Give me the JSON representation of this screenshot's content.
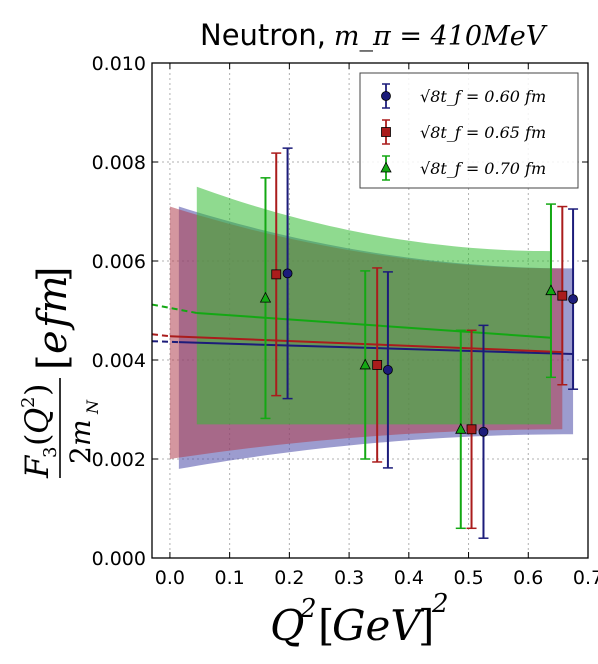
{
  "chart_data": {
    "type": "scatter",
    "title": {
      "text": "Neutron,",
      "math": "m_π = 410MeV"
    },
    "xlabel": "Q²[GeV]²",
    "ylabel": "F₃(Q²)/2m_N [e fm]",
    "xlim": [
      -0.03,
      0.7
    ],
    "ylim": [
      0.0,
      0.01
    ],
    "x_ticks": [
      0.0,
      0.1,
      0.2,
      0.3,
      0.4,
      0.5,
      0.6,
      0.7
    ],
    "x_tick_labels": [
      "0.0",
      "0.1",
      "0.2",
      "0.3",
      "0.4",
      "0.5",
      "0.6",
      "0.7"
    ],
    "y_ticks": [
      0.0,
      0.002,
      0.004,
      0.006,
      0.008,
      0.01
    ],
    "y_tick_labels": [
      "0.000",
      "0.002",
      "0.004",
      "0.006",
      "0.008",
      "0.010"
    ],
    "grid": true,
    "legend_position": "top-right",
    "series": [
      {
        "name": "√8t_f = 0.60 fm",
        "color": "#1c1c7a",
        "band_color": "#4a4aa8",
        "marker": "circle",
        "x": [
          0.197,
          0.365,
          0.525,
          0.675
        ],
        "y": [
          0.00575,
          0.0038,
          0.00255,
          0.00523
        ],
        "yerr": [
          0.00253,
          0.00198,
          0.00215,
          0.00182
        ],
        "fit_x": [
          0.015,
          0.675
        ],
        "fit_y": [
          0.00436,
          0.00412
        ],
        "extrap_x": [
          -0.03,
          0.015
        ],
        "extrap_y": [
          0.00438,
          0.00436
        ],
        "band_upper": [
          0.0071,
          0.00585
        ],
        "band_lower": [
          0.0018,
          0.0025
        ]
      },
      {
        "name": "√8t_f = 0.65 fm",
        "color": "#aa1c1c",
        "band_color": "#b04050",
        "marker": "square",
        "x": [
          0.178,
          0.347,
          0.505,
          0.657
        ],
        "y": [
          0.00573,
          0.0039,
          0.0026,
          0.0053
        ],
        "yerr": [
          0.00245,
          0.00196,
          0.002,
          0.0018
        ],
        "fit_x": [
          0.0,
          0.657
        ],
        "fit_y": [
          0.00448,
          0.00416
        ],
        "extrap_x": [
          -0.03,
          0.0
        ],
        "extrap_y": [
          0.00452,
          0.00448
        ],
        "band_upper": [
          0.0071,
          0.00585
        ],
        "band_lower": [
          0.002,
          0.0026
        ]
      },
      {
        "name": "√8t_f = 0.70 fm",
        "color": "#13a813",
        "band_color": "#33bb33",
        "marker": "triangle",
        "x": [
          0.16,
          0.327,
          0.487,
          0.638
        ],
        "y": [
          0.00525,
          0.0039,
          0.0026,
          0.0054
        ],
        "yerr": [
          0.00243,
          0.0019,
          0.002,
          0.00175
        ],
        "fit_x": [
          0.045,
          0.638
        ],
        "fit_y": [
          0.00495,
          0.00445
        ],
        "extrap_x": [
          -0.03,
          0.045
        ],
        "extrap_y": [
          0.00512,
          0.00495
        ],
        "band_upper": [
          0.0075,
          0.0062
        ],
        "band_lower": [
          0.0027,
          0.0027
        ]
      }
    ]
  }
}
